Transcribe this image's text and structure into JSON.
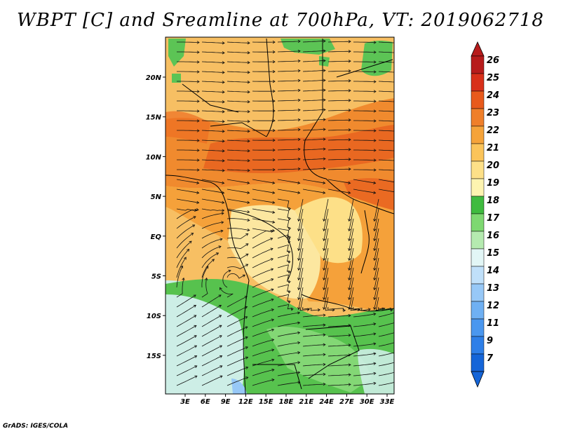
{
  "title": "WBPT [C] and Sreamline at 700hPa, VT: 2019062718",
  "credit": "GrADS: IGES/COLA",
  "lon_ticks": [
    "3E",
    "6E",
    "9E",
    "12E",
    "15E",
    "18E",
    "21E",
    "24E",
    "27E",
    "30E",
    "33E"
  ],
  "lat_ticks": [
    "20N",
    "15N",
    "10N",
    "5N",
    "EQ",
    "5S",
    "10S",
    "15S"
  ],
  "colorbar": {
    "labels": [
      "7",
      "9",
      "11",
      "12",
      "13",
      "14",
      "15",
      "16",
      "17",
      "18",
      "19",
      "20",
      "21",
      "22",
      "23",
      "24",
      "25",
      "26"
    ],
    "colors": [
      "#1565d8",
      "#2e7fe8",
      "#4a97ef",
      "#6fb0f3",
      "#97c8f7",
      "#c0e0fa",
      "#e2f6f6",
      "#b5eab0",
      "#7ed871",
      "#3fbb3f",
      "#fdf4b0",
      "#fde088",
      "#fbc45a",
      "#f5a33a",
      "#ef7f2a",
      "#e85a1c",
      "#d8301a",
      "#b71c1c"
    ]
  },
  "map_fields": {
    "regions": [
      {
        "name": "north-desert",
        "color": "#f7bf63"
      },
      {
        "name": "sahel-warm-band",
        "color": "#f08a2e"
      },
      {
        "name": "hot-core",
        "color": "#e8621f"
      },
      {
        "name": "equatorial-warm",
        "color": "#f5a13a"
      },
      {
        "name": "congo-cool",
        "color": "#fce7a0"
      },
      {
        "name": "southern-green",
        "color": "#57c24e"
      },
      {
        "name": "southwest-cool",
        "color": "#cdeee6"
      },
      {
        "name": "northern-green-patches",
        "color": "#5cc455"
      }
    ]
  }
}
